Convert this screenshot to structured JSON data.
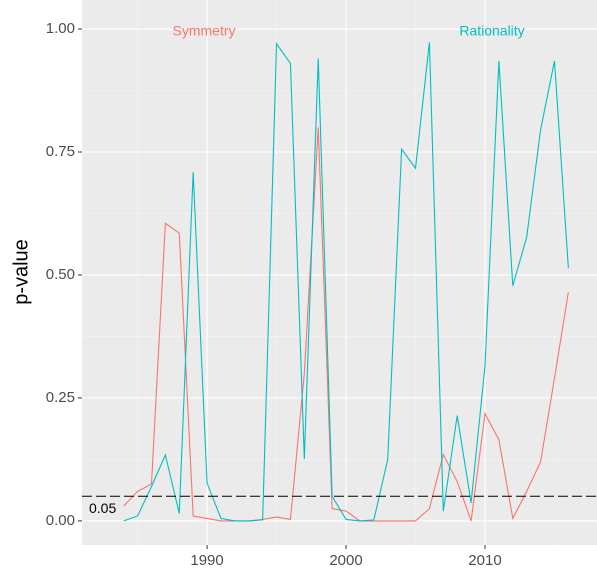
{
  "chart_data": {
    "type": "line",
    "y_label": "p-value",
    "x": [
      1984,
      1985,
      1986,
      1987,
      1988,
      1989,
      1990,
      1991,
      1992,
      1993,
      1994,
      1995,
      1996,
      1997,
      1998,
      1999,
      2000,
      2001,
      2002,
      2003,
      2004,
      2005,
      2006,
      2007,
      2008,
      2009,
      2010,
      2011,
      2012,
      2013,
      2014,
      2015,
      2016
    ],
    "series": [
      {
        "name": "Symmetry",
        "color": "#F8766D",
        "values": [
          0.03,
          0.06,
          0.075,
          0.605,
          0.585,
          0.01,
          0.005,
          0.0,
          0.0,
          0.0,
          0.003,
          0.008,
          0.003,
          0.3,
          0.8,
          0.025,
          0.02,
          0.0,
          0.0,
          0.0,
          0.0,
          0.0,
          0.025,
          0.135,
          0.08,
          0.0,
          0.218,
          0.165,
          0.005,
          0.06,
          0.12,
          0.29,
          0.465
        ]
      },
      {
        "name": "Rationality",
        "color": "#00BFC4",
        "values": [
          0.0,
          0.01,
          0.07,
          0.134,
          0.015,
          0.709,
          0.077,
          0.005,
          0.0,
          0.0,
          0.002,
          0.97,
          0.93,
          0.126,
          0.94,
          0.05,
          0.003,
          0.0,
          0.002,
          0.125,
          0.756,
          0.717,
          0.973,
          0.02,
          0.214,
          0.037,
          0.315,
          0.935,
          0.478,
          0.577,
          0.795,
          0.935,
          0.514
        ]
      }
    ],
    "hline": {
      "value": 0.05,
      "label": "0.05"
    },
    "xlim": [
      1981.0,
      2018.06
    ],
    "ylim": [
      -0.049,
      1.059
    ],
    "xticks": [
      1990,
      2000,
      2010
    ],
    "yticks": [
      {
        "value": 0,
        "label": "0.00"
      },
      {
        "value": 0.25,
        "label": "0.25"
      },
      {
        "value": 0.5,
        "label": "0.50"
      },
      {
        "value": 0.75,
        "label": "0.75"
      },
      {
        "value": 1,
        "label": "1.00"
      }
    ],
    "grid": true
  }
}
